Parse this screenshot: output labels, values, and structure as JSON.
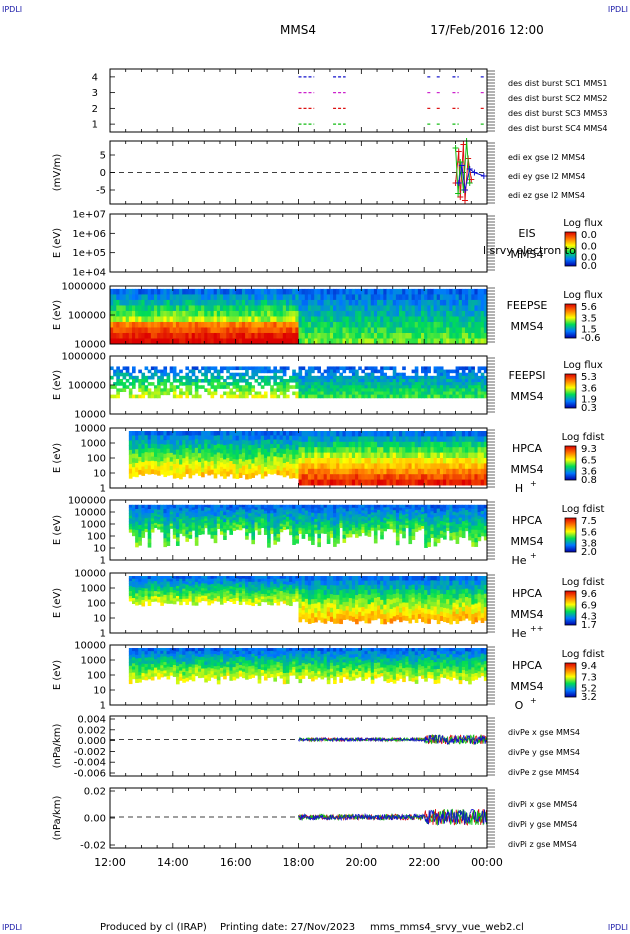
{
  "header": {
    "corner_tl": "IPDLI",
    "corner_tr": "IPDLI",
    "corner_bl": "IPDLI",
    "corner_br": "IPDLI",
    "spacecraft": "MMS4",
    "datetime": "17/Feb/2016 12:00"
  },
  "footer": {
    "produced_by": "Produced by cl (IRAP)",
    "printing_date": "Printing date: 27/Nov/2023",
    "script_name": "mms_mms4_srvy_vue_web2.cl"
  },
  "colors": {
    "red": "#dd1111",
    "green": "#11bb11",
    "blue": "#1111cc",
    "magenta": "#cc22cc"
  },
  "chart_data": [
    {
      "type": "scatter",
      "id": "burst",
      "ylim": [
        0.5,
        4.5
      ],
      "yticks": [
        "1",
        "2",
        "3",
        "4"
      ],
      "series": [
        {
          "name": "des dist burst SC1 MMS1",
          "y": 4,
          "color": "#1111cc",
          "segments": [
            [
              18.0,
              18.5
            ],
            [
              19.1,
              19.5
            ],
            [
              22.1,
              22.2
            ],
            [
              22.4,
              22.5
            ],
            [
              22.9,
              23.1
            ],
            [
              23.8,
              23.9
            ]
          ]
        },
        {
          "name": "des dist burst SC2 MMS2",
          "y": 3,
          "color": "#cc22cc",
          "segments": [
            [
              18.0,
              18.5
            ],
            [
              19.1,
              19.5
            ],
            [
              22.1,
              22.2
            ],
            [
              22.4,
              22.5
            ],
            [
              22.9,
              23.1
            ],
            [
              23.8,
              23.9
            ]
          ]
        },
        {
          "name": "des dist burst SC3 MMS3",
          "y": 2,
          "color": "#dd1111",
          "segments": [
            [
              18.0,
              18.5
            ],
            [
              19.1,
              19.5
            ],
            [
              22.1,
              22.2
            ],
            [
              22.4,
              22.5
            ],
            [
              22.9,
              23.1
            ],
            [
              23.8,
              23.9
            ]
          ]
        },
        {
          "name": "des dist burst SC4 MMS4",
          "y": 1,
          "color": "#11bb11",
          "segments": [
            [
              18.0,
              18.5
            ],
            [
              19.1,
              19.5
            ],
            [
              22.1,
              22.2
            ],
            [
              22.4,
              22.5
            ],
            [
              22.9,
              23.1
            ],
            [
              23.8,
              23.9
            ]
          ]
        }
      ]
    },
    {
      "type": "line",
      "id": "edi",
      "ylabel": "(mV/m)",
      "yticks": [
        "5",
        "0",
        "-5"
      ],
      "ylim": [
        -9,
        9
      ],
      "series": [
        {
          "name": "edi ex gse l2 MMS4",
          "color": "#dd1111",
          "x": [
            23.0,
            23.1,
            23.15,
            23.25,
            23.3,
            23.4,
            23.5
          ],
          "y": [
            -3,
            6,
            -7,
            8,
            -8,
            4,
            -2
          ]
        },
        {
          "name": "edi ey gse l2 MMS4",
          "color": "#11bb11",
          "x": [
            23.0,
            23.08,
            23.15,
            23.25,
            23.35,
            23.45
          ],
          "y": [
            7,
            -6,
            3,
            -5,
            9,
            -3
          ]
        },
        {
          "name": "edi ez gse l2 MMS4",
          "color": "#1111cc",
          "x": [
            23.1,
            23.2,
            23.3,
            23.45,
            23.6,
            23.9
          ],
          "y": [
            -3,
            2,
            -5,
            1,
            0,
            -1
          ]
        }
      ]
    },
    {
      "type": "heatmap",
      "id": "eis",
      "instrument": "EIS",
      "sc": "MMS4",
      "overlay_text": "l srvy electron to",
      "ylabel": "E (eV)",
      "yticks": [
        "1e+07",
        "1e+06",
        "1e+05",
        "1e+04"
      ],
      "colorbar_label": "Log flux",
      "colorbar_ticks": [
        "0.0",
        "0.0",
        "0.0",
        "0.0"
      ]
    },
    {
      "type": "heatmap",
      "id": "feepse",
      "instrument": "FEEPSE",
      "sc": "MMS4",
      "ylabel": "E (eV)",
      "yticks": [
        "1000000",
        "100000",
        "10000"
      ],
      "colorbar_label": "Log flux",
      "colorbar_ticks": [
        "5.6",
        "3.5",
        "1.5",
        "-0.6"
      ]
    },
    {
      "type": "heatmap",
      "id": "feepsi",
      "instrument": "FEEPSI",
      "sc": "MMS4",
      "ylabel": "E (eV)",
      "yticks": [
        "1000000",
        "100000",
        "10000"
      ],
      "colorbar_label": "Log flux",
      "colorbar_ticks": [
        "5.3",
        "3.6",
        "1.9",
        "0.3"
      ]
    },
    {
      "type": "heatmap",
      "id": "hpca_h",
      "instrument": "HPCA",
      "sc": "MMS4",
      "species": "H",
      "species_sup": "+",
      "ylabel": "E (eV)",
      "yticks": [
        "10000",
        "1000",
        "100",
        "10",
        "1"
      ],
      "colorbar_label": "Log fdist",
      "colorbar_ticks": [
        "9.3",
        "6.5",
        "3.6",
        "0.8"
      ]
    },
    {
      "type": "heatmap",
      "id": "hpca_he",
      "instrument": "HPCA",
      "sc": "MMS4",
      "species": "He",
      "species_sup": "+",
      "ylabel": "E (eV)",
      "yticks": [
        "100000",
        "10000",
        "1000",
        "100",
        "10",
        "1"
      ],
      "colorbar_label": "Log fdist",
      "colorbar_ticks": [
        "7.5",
        "5.6",
        "3.8",
        "2.0"
      ]
    },
    {
      "type": "heatmap",
      "id": "hpca_hepp",
      "instrument": "HPCA",
      "sc": "MMS4",
      "species": "He",
      "species_sup": "++",
      "ylabel": "E (eV)",
      "yticks": [
        "10000",
        "1000",
        "100",
        "10",
        "1"
      ],
      "colorbar_label": "Log fdist",
      "colorbar_ticks": [
        "9.6",
        "6.9",
        "4.3",
        "1.7"
      ]
    },
    {
      "type": "heatmap",
      "id": "hpca_o",
      "instrument": "HPCA",
      "sc": "MMS4",
      "species": "O",
      "species_sup": "+",
      "ylabel": "E (eV)",
      "yticks": [
        "10000",
        "1000",
        "100",
        "10",
        "1"
      ],
      "colorbar_label": "Log fdist",
      "colorbar_ticks": [
        "9.4",
        "7.3",
        "5.2",
        "3.2"
      ]
    },
    {
      "type": "line",
      "id": "divpe",
      "ylabel": "(nPa/km)",
      "yticks": [
        "0.004",
        "0.002",
        "0.000",
        "-0.002",
        "-0.004",
        "-0.006"
      ],
      "ylim": [
        -0.007,
        0.0045
      ],
      "series": [
        {
          "name": "divPe x gse MMS4",
          "color": "#dd1111"
        },
        {
          "name": "divPe y gse MMS4",
          "color": "#11bb11"
        },
        {
          "name": "divPe z gse MMS4",
          "color": "#1111cc"
        }
      ]
    },
    {
      "type": "line",
      "id": "divpi",
      "ylabel": "(nPa/km)",
      "yticks": [
        "0.02",
        "0.00",
        "-0.02"
      ],
      "ylim": [
        -0.032,
        0.03
      ],
      "series": [
        {
          "name": "divPi x gse MMS4",
          "color": "#dd1111"
        },
        {
          "name": "divPi y gse MMS4",
          "color": "#11bb11"
        },
        {
          "name": "divPi z gse MMS4",
          "color": "#1111cc"
        }
      ]
    }
  ],
  "xaxis": {
    "ticks": [
      "12:00",
      "14:00",
      "16:00",
      "18:00",
      "20:00",
      "22:00",
      "00:00"
    ]
  }
}
